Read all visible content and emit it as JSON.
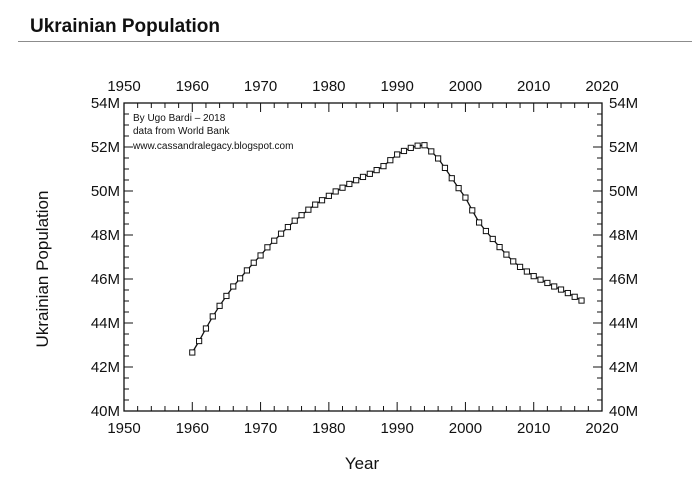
{
  "header": {
    "title": "Ukrainian Population"
  },
  "annotations": [
    "By Ugo Bardi – 2018",
    "data from World Bank",
    "www.cassandralegacy.blogspot.com"
  ],
  "chart_data": {
    "type": "line",
    "title": "",
    "xlabel": "Year",
    "ylabel": "Ukrainian Population",
    "xlim": [
      1950,
      2020
    ],
    "ylim": [
      40,
      54
    ],
    "xticks": [
      1950,
      1960,
      1970,
      1980,
      1990,
      2000,
      2010,
      2020
    ],
    "yticks": [
      40,
      42,
      44,
      46,
      48,
      50,
      52,
      54
    ],
    "ytick_labels": [
      "40M",
      "42M",
      "44M",
      "46M",
      "48M",
      "50M",
      "52M",
      "54M"
    ],
    "grid": false,
    "legend": "none",
    "marker": "open-square",
    "series": [
      {
        "x": [
          1960,
          1961,
          1962,
          1963,
          1964,
          1965,
          1966,
          1967,
          1968,
          1969,
          1970,
          1971,
          1972,
          1973,
          1974,
          1975,
          1976,
          1977,
          1978,
          1979,
          1980,
          1981,
          1982,
          1983,
          1984,
          1985,
          1986,
          1987,
          1988,
          1989,
          1990,
          1991,
          1992,
          1993,
          1994,
          1995,
          1996,
          1997,
          1998,
          1999,
          2000,
          2001,
          2002,
          2003,
          2004,
          2005,
          2006,
          2007,
          2008,
          2009,
          2010,
          2011,
          2012,
          2013,
          2014,
          2015,
          2016,
          2017
        ],
        "values": [
          42.66,
          43.18,
          43.75,
          44.3,
          44.78,
          45.23,
          45.66,
          46.03,
          46.39,
          46.74,
          47.07,
          47.44,
          47.74,
          48.06,
          48.36,
          48.65,
          48.9,
          49.15,
          49.38,
          49.58,
          49.78,
          49.98,
          50.15,
          50.32,
          50.49,
          50.64,
          50.78,
          50.95,
          51.13,
          51.4,
          51.66,
          51.82,
          51.96,
          52.06,
          52.08,
          51.8,
          51.48,
          51.05,
          50.58,
          50.13,
          49.7,
          49.12,
          48.57,
          48.18,
          47.82,
          47.45,
          47.11,
          46.8,
          46.55,
          46.34,
          46.13,
          45.97,
          45.82,
          45.66,
          45.52,
          45.36,
          45.19,
          45.02
        ]
      }
    ]
  }
}
